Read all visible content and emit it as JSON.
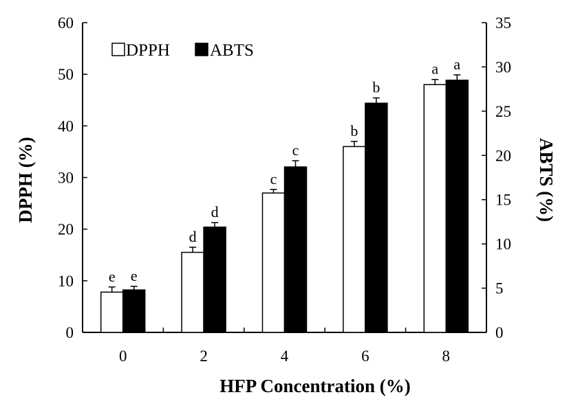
{
  "chart_data": {
    "type": "bar",
    "xlabel": "HFP Concentration (%)",
    "ylabel": "DPPH (%)",
    "y2label": "ABTS (%)",
    "categories": [
      "0",
      "2",
      "4",
      "6",
      "8"
    ],
    "ylim": [
      0,
      60
    ],
    "y2lim": [
      0,
      35
    ],
    "yticks": [
      "0",
      "10",
      "20",
      "30",
      "40",
      "50",
      "60"
    ],
    "y2ticks": [
      "0",
      "5",
      "10",
      "15",
      "20",
      "25",
      "30",
      "35"
    ],
    "legend_position": "top-left",
    "series": [
      {
        "name": "DPPH",
        "axis": "left",
        "color": "#ffffff",
        "values": [
          7.8,
          15.5,
          27.0,
          36.0,
          48.0
        ],
        "errors": [
          1.0,
          1.0,
          0.7,
          1.0,
          1.0
        ],
        "labels": [
          "e",
          "d",
          "c",
          "b",
          "a"
        ]
      },
      {
        "name": "ABTS",
        "axis": "right",
        "color": "#000000",
        "values": [
          4.8,
          11.9,
          18.7,
          25.9,
          28.5
        ],
        "errors": [
          0.4,
          0.5,
          0.7,
          0.6,
          0.6
        ],
        "labels": [
          "e",
          "d",
          "c",
          "b",
          "a"
        ]
      }
    ],
    "grid": false
  }
}
